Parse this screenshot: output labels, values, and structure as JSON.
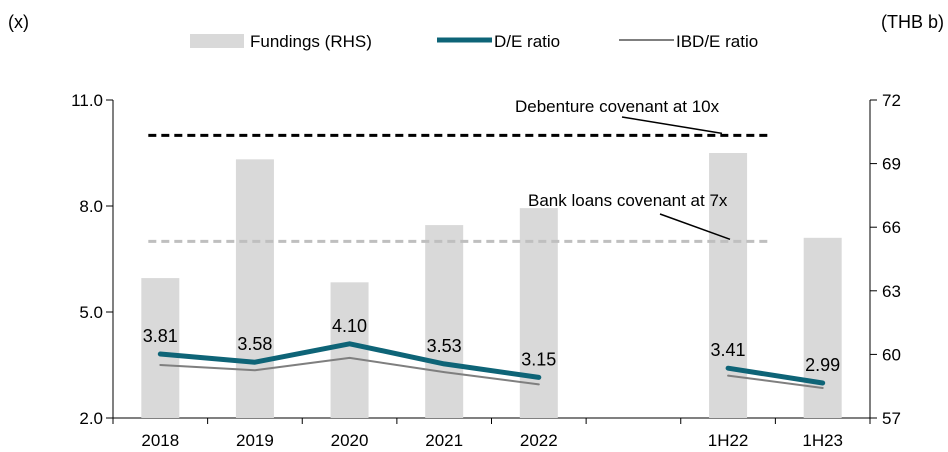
{
  "chart_data": {
    "type": "bar",
    "left_axis_unit": "(x)",
    "right_axis_unit": "(THB b)",
    "categories": [
      "2018",
      "2019",
      "2020",
      "2021",
      "2022",
      "",
      "1H22",
      "1H23"
    ],
    "y_left": {
      "ticks": [
        "11.0",
        "8.0",
        "5.0",
        "2.0"
      ],
      "ylim": [
        2,
        11
      ]
    },
    "y_right": {
      "ticks": [
        "72",
        "69",
        "66",
        "63",
        "60",
        "57"
      ],
      "ylim": [
        57,
        72
      ]
    },
    "series": [
      {
        "name": "Fundings (RHS)",
        "kind": "bar",
        "axis": "right",
        "color": "#d9d9d9",
        "values": [
          63.6,
          69.2,
          63.4,
          66.1,
          66.9,
          null,
          69.5,
          65.5
        ]
      },
      {
        "name": "D/E ratio",
        "kind": "line",
        "axis": "left",
        "color": "#0e6477",
        "values": [
          3.81,
          3.58,
          4.1,
          3.53,
          3.15,
          null,
          3.41,
          2.99
        ],
        "labels": [
          "3.81",
          "3.58",
          "4.10",
          "3.53",
          "3.15",
          "",
          "3.41",
          "2.99"
        ]
      },
      {
        "name": "IBD/E ratio",
        "kind": "line",
        "axis": "left",
        "color": "#7f7f7f",
        "values": [
          3.5,
          3.35,
          3.7,
          3.3,
          2.95,
          null,
          3.2,
          2.85
        ]
      }
    ],
    "reference_lines": [
      {
        "label": "Debenture covenant at 10x",
        "value": 10,
        "color": "#000000"
      },
      {
        "label": "Bank loans covenant at 7x",
        "value": 7,
        "color": "#bfbfbf"
      }
    ],
    "legend_position": "top"
  }
}
